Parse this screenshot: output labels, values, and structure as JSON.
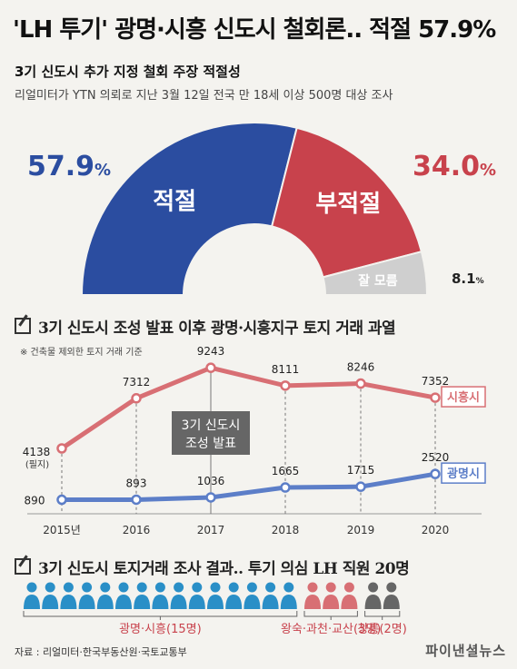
{
  "title": "'LH 투기' 광명·시흥 신도시 철회론.. 적절 57.9%",
  "survey": {
    "subtitle": "3기 신도시 추가 지정 철회 주장 적절성",
    "note": "리얼미터가 YTN 의뢰로 지난 3월 12일 전국 만 18세 이상 500명 대상 조사"
  },
  "section2": {
    "title": "3기 신도시 조성 발표 이후 광명·시흥지구 토지 거래 과열",
    "basis": "※ 건축물 제외한 토지 거래 기준"
  },
  "section3": {
    "title": "3기 신도시 토지거래 조사 결과.. 투기 의심 LH 직원 20명"
  },
  "source": "자료 : 리얼미터·한국부동산원·국토교통부",
  "brand": "파이낸셜뉴스",
  "colors": {
    "blue": "#2b4da0",
    "red": "#c8424c",
    "gray": "#cfcfcf",
    "lightRed": "#d86f74",
    "lightBlue": "#5c7ec8",
    "darkGray": "#666666"
  },
  "chart_data": [
    {
      "type": "pie",
      "subtype": "half-donut",
      "categories": [
        "적절",
        "부적절",
        "잘 모름"
      ],
      "values": [
        57.9,
        34.0,
        8.1
      ],
      "value_labels": [
        "57.9%",
        "34.0%",
        "8.1%"
      ],
      "colors": [
        "#2b4da0",
        "#c8424c",
        "#cfcfcf"
      ]
    },
    {
      "type": "line",
      "x": [
        "2015년",
        "2016",
        "2017",
        "2018",
        "2019",
        "2020"
      ],
      "series": [
        {
          "name": "시흥시",
          "values": [
            4138,
            7312,
            9243,
            8111,
            8246,
            7352
          ],
          "color": "#d86f74"
        },
        {
          "name": "광명시",
          "values": [
            890,
            893,
            1036,
            1665,
            1715,
            2520
          ],
          "color": "#5c7ec8"
        }
      ],
      "ylim": [
        0,
        10000
      ],
      "annotations": [
        {
          "x": "2015년",
          "text": "(필지)"
        },
        {
          "x": "2017",
          "text": "3기 신도시\n조성 발표"
        }
      ]
    },
    {
      "type": "bar",
      "subtype": "pictogram",
      "categories": [
        "광명·시흥(15명)",
        "왕숙·과천·교산(3명)",
        "창릉(2명)"
      ],
      "values": [
        15,
        3,
        2
      ],
      "colors": [
        "#2a8fc7",
        "#d86f74",
        "#666666"
      ]
    }
  ]
}
